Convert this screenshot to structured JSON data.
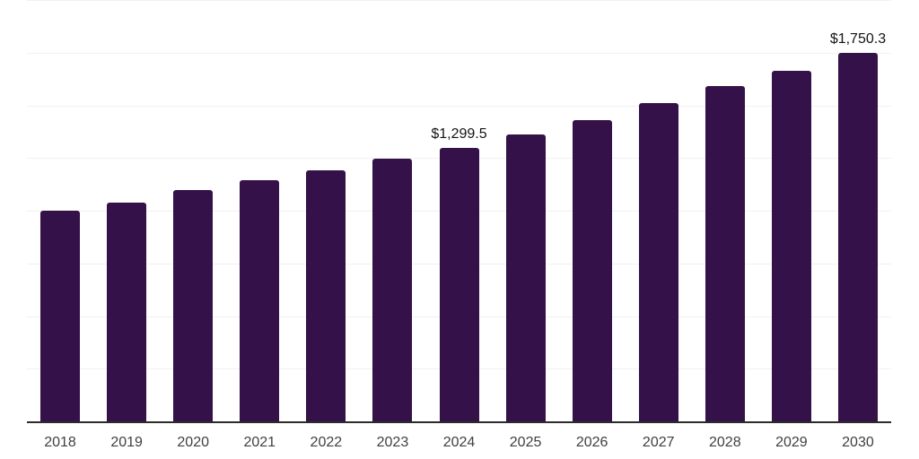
{
  "chart_data": {
    "type": "bar",
    "title": "",
    "xlabel": "",
    "ylabel": "",
    "categories": [
      "2018",
      "2019",
      "2020",
      "2021",
      "2022",
      "2023",
      "2024",
      "2025",
      "2026",
      "2027",
      "2028",
      "2029",
      "2030"
    ],
    "values": [
      1000,
      1040,
      1100,
      1143,
      1190,
      1246,
      1299.5,
      1362,
      1430,
      1509,
      1591,
      1662,
      1750.3
    ],
    "data_labels": [
      {
        "category": "2024",
        "text": "$1,299.5"
      },
      {
        "category": "2030",
        "text": "$1,750.3"
      }
    ],
    "ylim": [
      0,
      2000
    ],
    "grid_step": 250,
    "grid": "horizontal",
    "legend_position": "none",
    "y_axis_tick_labels_visible": false,
    "colors": {
      "bar": "#341148",
      "axis_line": "#2b2b2b",
      "gridline": "#f1f1f1",
      "tick_label": "#404040",
      "data_label": "#141414",
      "background": "#ffffff"
    }
  }
}
